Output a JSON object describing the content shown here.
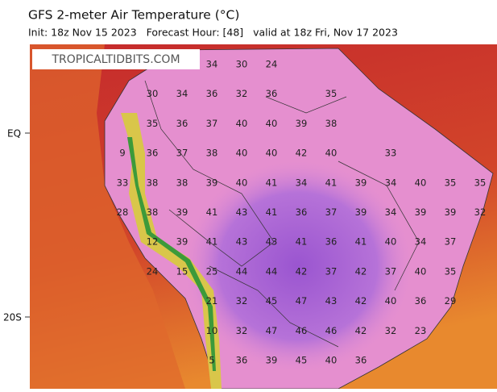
{
  "header": {
    "title": "GFS 2-meter Air Temperature (°C)",
    "subtitle": "Init: 18z Nov 15 2023   Forecast Hour: [48]   valid at 18z Fri, Nov 17 2023"
  },
  "watermark": "TROPICALTIDBITS.COM",
  "latitude_labels": [
    "EQ",
    "20S"
  ],
  "temperature_grid": [
    [
      null,
      null,
      null,
      34,
      30,
      24
    ],
    [
      null,
      30,
      34,
      36,
      32,
      36,
      null,
      35
    ],
    [
      null,
      35,
      36,
      37,
      40,
      40,
      39,
      38
    ],
    [
      9,
      36,
      37,
      38,
      40,
      40,
      42,
      40,
      null,
      33
    ],
    [
      33,
      38,
      38,
      39,
      40,
      41,
      34,
      41,
      39,
      34,
      40,
      35,
      35
    ],
    [
      28,
      38,
      39,
      41,
      43,
      41,
      36,
      37,
      39,
      34,
      39,
      39,
      32
    ],
    [
      null,
      12,
      39,
      41,
      43,
      43,
      41,
      36,
      41,
      40,
      34,
      37
    ],
    [
      null,
      24,
      15,
      25,
      44,
      44,
      42,
      37,
      42,
      37,
      40,
      35
    ],
    [
      null,
      null,
      null,
      21,
      32,
      45,
      47,
      43,
      42,
      40,
      36,
      29
    ],
    [
      null,
      null,
      null,
      10,
      32,
      47,
      46,
      46,
      42,
      32,
      23
    ],
    [
      null,
      null,
      null,
      5,
      36,
      39,
      45,
      40,
      36
    ]
  ]
}
